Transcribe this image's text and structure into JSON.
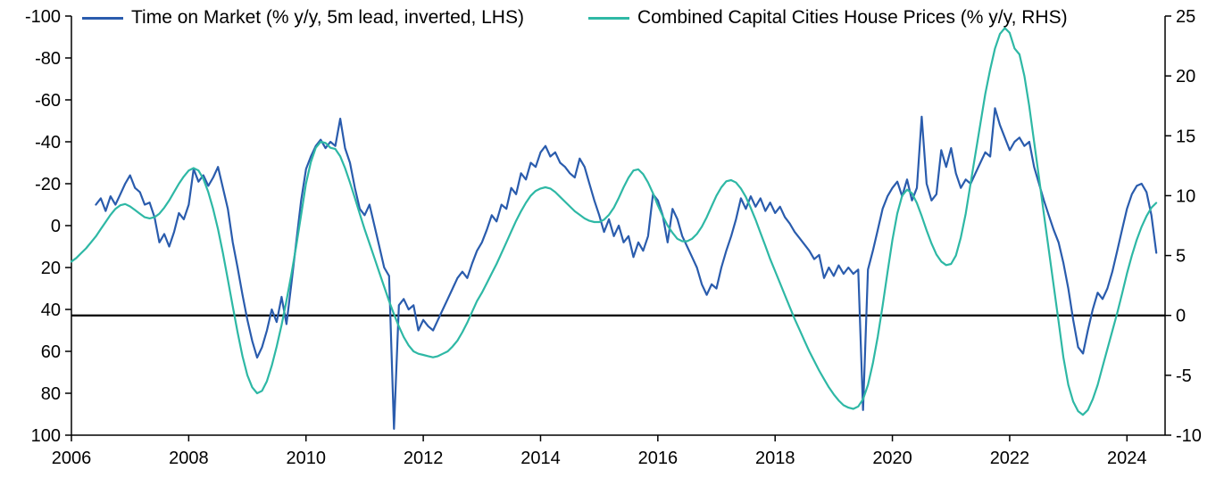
{
  "chart_data": {
    "type": "line",
    "title": "",
    "x_domain": [
      2006,
      2024.65
    ],
    "x_ticks": [
      2006,
      2008,
      2010,
      2012,
      2014,
      2016,
      2018,
      2020,
      2022,
      2024
    ],
    "left_axis": {
      "side": "left",
      "top": -100,
      "bottom": 100,
      "inverted": true,
      "ticks": [
        -100,
        -80,
        -60,
        -40,
        -20,
        0,
        20,
        40,
        60,
        80,
        100
      ]
    },
    "right_axis": {
      "side": "right",
      "top": 25,
      "bottom": -10,
      "ticks": [
        25,
        20,
        15,
        10,
        5,
        0,
        -5,
        -10
      ]
    },
    "zero_line": {
      "axis": "right",
      "value": 0,
      "color": "#000000"
    },
    "axis_color": "#000000",
    "series": [
      {
        "name": "Time on Market (% y/y, 5m lead, inverted, LHS)",
        "axis": "left",
        "color": "#2a5cad",
        "x_start": 2006.417,
        "x_step": 0.083333,
        "values": [
          -10,
          -13,
          -7,
          -14,
          -10,
          -15,
          -20,
          -24,
          -18,
          -16,
          -10,
          -11,
          -4,
          8,
          4,
          10,
          3,
          -6,
          -3,
          -10,
          -27,
          -21,
          -24,
          -19,
          -23,
          -28,
          -18,
          -8,
          8,
          20,
          33,
          45,
          55,
          63,
          58,
          50,
          40,
          46,
          34,
          47,
          28,
          8,
          -12,
          -27,
          -33,
          -38,
          -41,
          -37,
          -40,
          -38,
          -51,
          -37,
          -30,
          -18,
          -8,
          -5,
          -10,
          0,
          10,
          20,
          24,
          97,
          38,
          35,
          40,
          38,
          50,
          45,
          48,
          50,
          45,
          40,
          35,
          30,
          25,
          22,
          25,
          18,
          12,
          8,
          2,
          -5,
          -2,
          -10,
          -8,
          -18,
          -15,
          -25,
          -22,
          -30,
          -28,
          -35,
          -38,
          -33,
          -35,
          -30,
          -28,
          -25,
          -23,
          -32,
          -28,
          -20,
          -12,
          -5,
          3,
          -3,
          5,
          0,
          8,
          5,
          15,
          8,
          12,
          5,
          -15,
          -12,
          -5,
          8,
          -8,
          -3,
          5,
          10,
          15,
          20,
          28,
          33,
          28,
          30,
          20,
          12,
          5,
          -3,
          -13,
          -8,
          -14,
          -9,
          -13,
          -7,
          -11,
          -6,
          -9,
          -4,
          -1,
          3,
          6,
          9,
          12,
          16,
          14,
          25,
          20,
          24,
          19,
          23,
          20,
          23,
          21,
          88,
          21,
          12,
          2,
          -8,
          -14,
          -18,
          -21,
          -14,
          -22,
          -12,
          -18,
          -52,
          -20,
          -12,
          -15,
          -36,
          -28,
          -37,
          -25,
          -18,
          -22,
          -20,
          -25,
          -30,
          -35,
          -33,
          -56,
          -48,
          -42,
          -36,
          -40,
          -42,
          -38,
          -40,
          -28,
          -20,
          -12,
          -5,
          2,
          8,
          18,
          30,
          45,
          58,
          61,
          50,
          40,
          32,
          35,
          30,
          22,
          12,
          2,
          -8,
          -15,
          -19,
          -20,
          -16,
          -5,
          13
        ]
      },
      {
        "name": "Combined Capital Cities House Prices (% y/y, RHS)",
        "axis": "right",
        "color": "#2eb8a5",
        "x_start": 2006.0,
        "x_step": 0.083333,
        "values": [
          4.5,
          4.8,
          5.2,
          5.6,
          6.1,
          6.6,
          7.2,
          7.8,
          8.4,
          8.9,
          9.2,
          9.3,
          9.1,
          8.8,
          8.5,
          8.2,
          8.1,
          8.2,
          8.5,
          9.0,
          9.6,
          10.3,
          11.0,
          11.6,
          12.1,
          12.3,
          12.1,
          11.4,
          10.3,
          8.9,
          7.2,
          5.2,
          3.0,
          0.8,
          -1.4,
          -3.4,
          -5.0,
          -6.0,
          -6.5,
          -6.3,
          -5.5,
          -4.2,
          -2.6,
          -0.8,
          1.2,
          3.4,
          5.8,
          8.4,
          11.0,
          12.8,
          14.0,
          14.5,
          14.4,
          14.0,
          13.9,
          13.3,
          12.3,
          11.1,
          9.8,
          8.5,
          7.2,
          6.0,
          4.8,
          3.6,
          2.4,
          1.2,
          0.1,
          -0.9,
          -1.8,
          -2.5,
          -3.0,
          -3.2,
          -3.3,
          -3.4,
          -3.5,
          -3.4,
          -3.2,
          -3.0,
          -2.6,
          -2.1,
          -1.4,
          -0.6,
          0.3,
          1.2,
          1.9,
          2.7,
          3.5,
          4.3,
          5.2,
          6.1,
          7.0,
          7.9,
          8.7,
          9.4,
          10.0,
          10.4,
          10.6,
          10.7,
          10.6,
          10.3,
          9.9,
          9.5,
          9.1,
          8.7,
          8.4,
          8.1,
          7.9,
          7.8,
          7.8,
          8.0,
          8.4,
          9.0,
          9.8,
          10.7,
          11.5,
          12.1,
          12.2,
          11.8,
          11.1,
          10.2,
          9.2,
          8.3,
          7.5,
          6.9,
          6.4,
          6.2,
          6.2,
          6.4,
          6.8,
          7.4,
          8.2,
          9.1,
          10.0,
          10.7,
          11.2,
          11.3,
          11.1,
          10.6,
          9.9,
          9.0,
          8.0,
          6.9,
          5.8,
          4.7,
          3.7,
          2.7,
          1.7,
          0.7,
          -0.3,
          -1.2,
          -2.1,
          -3.0,
          -3.8,
          -4.6,
          -5.3,
          -6.0,
          -6.6,
          -7.1,
          -7.5,
          -7.7,
          -7.8,
          -7.6,
          -7.0,
          -5.8,
          -4.0,
          -1.8,
          0.8,
          3.6,
          6.3,
          8.5,
          10.0,
          10.5,
          10.2,
          9.4,
          8.3,
          7.1,
          6.0,
          5.1,
          4.5,
          4.2,
          4.3,
          5.0,
          6.5,
          8.5,
          11.0,
          13.5,
          16.0,
          18.5,
          20.5,
          22.3,
          23.5,
          24.0,
          23.6,
          22.3,
          21.8,
          20.0,
          17.5,
          14.5,
          11.5,
          8.5,
          5.5,
          2.5,
          -0.5,
          -3.5,
          -5.8,
          -7.2,
          -8.0,
          -8.3,
          -7.9,
          -7.0,
          -5.8,
          -4.3,
          -2.8,
          -1.3,
          0.2,
          1.8,
          3.5,
          5.0,
          6.3,
          7.4,
          8.3,
          9.0,
          9.4
        ]
      }
    ]
  }
}
